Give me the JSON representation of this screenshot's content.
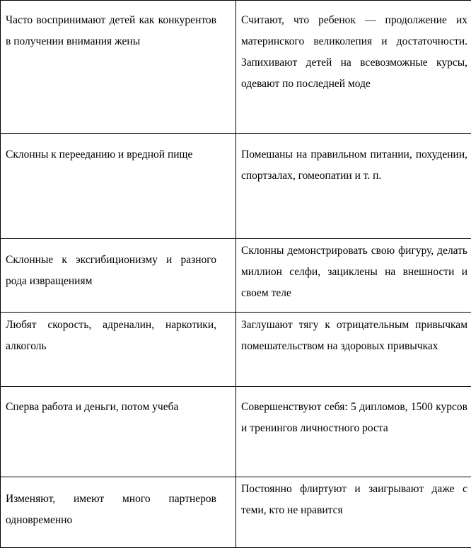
{
  "table": {
    "rows": [
      {
        "left": "Часто воспринимают детей как конкурентов в получении внимания жены",
        "right": "Считают, что ребенок — продолжение их материнского великолепия и достаточности. Запихивают детей на всевозможные курсы, одевают по последней моде"
      },
      {
        "left": "Склонны к перееданию и вредной пище",
        "right": "Помешаны на правильном питании, похудении, спортзалах, гомеопатии и т. п."
      },
      {
        "left": "Склонные к эксгибиционизму и разного рода извращениям",
        "right": "Склонны демонстрировать свою фигуру, делать миллион селфи, зациклены на внешности и своем теле"
      },
      {
        "left": "Любят скорость, адреналин, наркотики, алкоголь",
        "right": "Заглушают тягу к отрицательным привычкам помешательством на здоровых привычках"
      },
      {
        "left": "Сперва работа и деньги, потом учеба",
        "right": "Совершенствуют себя: 5 дипломов, 1500 курсов и тренингов личностного роста"
      },
      {
        "left": "Изменяют, имеют много партнеров одновременно",
        "right": "Постоянно флиртуют и заигрывают даже с теми, кто не нравится"
      }
    ]
  }
}
